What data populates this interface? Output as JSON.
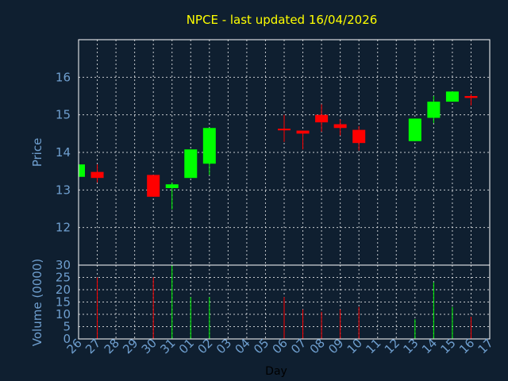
{
  "chart_data": {
    "type": "candlestick",
    "title": "NPCE - last updated 16/04/2026",
    "xlabel": "Day",
    "price_panel": {
      "ylabel": "Price",
      "ylim": [
        11,
        17
      ],
      "yticks": [
        12,
        13,
        14,
        15,
        16
      ],
      "grid": true
    },
    "volume_panel": {
      "ylabel": "Volume (0000)",
      "ylim": [
        0,
        30
      ],
      "yticks": [
        0,
        5,
        10,
        15,
        20,
        25,
        30
      ],
      "grid": true
    },
    "categories": [
      "26",
      "27",
      "28",
      "29",
      "30",
      "31",
      "01",
      "02",
      "03",
      "04",
      "05",
      "06",
      "07",
      "08",
      "09",
      "10",
      "11",
      "12",
      "13",
      "14",
      "15",
      "16",
      "17"
    ],
    "candles": [
      {
        "day": "26",
        "open": 13.35,
        "high": 13.68,
        "low": 13.35,
        "close": 13.68,
        "volume": null
      },
      {
        "day": "27",
        "open": 13.48,
        "high": 13.68,
        "low": 13.2,
        "close": 13.32,
        "volume": 25
      },
      {
        "day": "30",
        "open": 13.4,
        "high": 13.4,
        "low": 12.82,
        "close": 12.82,
        "volume": 25
      },
      {
        "day": "31",
        "open": 13.05,
        "high": 13.2,
        "low": 12.48,
        "close": 13.15,
        "volume": 30
      },
      {
        "day": "01",
        "open": 13.32,
        "high": 14.08,
        "low": 13.32,
        "close": 14.08,
        "volume": 17
      },
      {
        "day": "02",
        "open": 13.7,
        "high": 14.65,
        "low": 13.4,
        "close": 14.65,
        "volume": 17
      },
      {
        "day": "06",
        "open": 14.63,
        "high": 15.0,
        "low": 14.28,
        "close": 14.6,
        "volume": 17
      },
      {
        "day": "07",
        "open": 14.58,
        "high": 14.58,
        "low": 14.08,
        "close": 14.5,
        "volume": 12
      },
      {
        "day": "08",
        "open": 15.0,
        "high": 15.28,
        "low": 14.55,
        "close": 14.8,
        "volume": 11
      },
      {
        "day": "09",
        "open": 14.75,
        "high": 14.88,
        "low": 14.45,
        "close": 14.65,
        "volume": 12
      },
      {
        "day": "10",
        "open": 14.6,
        "high": 14.7,
        "low": 14.05,
        "close": 14.25,
        "volume": 13
      },
      {
        "day": "13",
        "open": 14.3,
        "high": 14.9,
        "low": 14.3,
        "close": 14.9,
        "volume": 8
      },
      {
        "day": "14",
        "open": 14.92,
        "high": 15.5,
        "low": 14.78,
        "close": 15.35,
        "volume": 23
      },
      {
        "day": "15",
        "open": 15.35,
        "high": 15.62,
        "low": 15.35,
        "close": 15.62,
        "volume": 13
      },
      {
        "day": "16",
        "open": 15.5,
        "high": 15.55,
        "low": 15.25,
        "close": 15.45,
        "volume": 9
      }
    ],
    "colors": {
      "background": "#0f1f30",
      "title": "#ffff00",
      "axis_text": "#6f9fcf",
      "up": "#00ff00",
      "down": "#ff0000",
      "grid": "#ffffff"
    }
  }
}
